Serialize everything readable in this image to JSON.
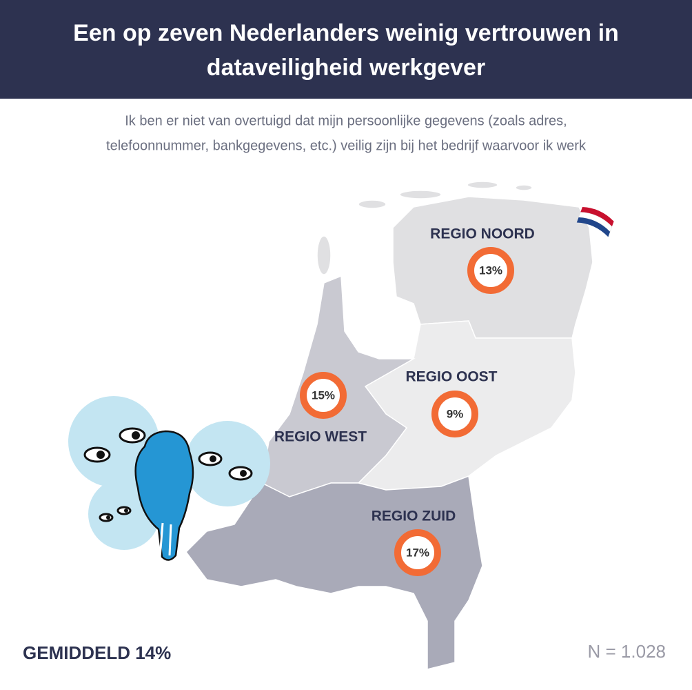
{
  "header": {
    "title_lines": [
      "Een op zeven Nederlanders weinig vertrouwen in",
      "dataveiligheid werkgever"
    ]
  },
  "subtitle_lines": [
    "Ik ben er niet van overtuigd dat mijn persoonlijke gegevens (zoals adres,",
    "telefoonnummer, bankgegevens, etc.) veilig zijn bij het bedrijf waarvoor ik werk"
  ],
  "regions": [
    {
      "name": "REGIO NOORD",
      "value": "13%"
    },
    {
      "name": "REGIO OOST",
      "value": "9%"
    },
    {
      "name": "REGIO WEST",
      "value": "15%"
    },
    {
      "name": "REGIO ZUID",
      "value": "17%"
    }
  ],
  "footer": {
    "average": "GEMIDDELD 14%",
    "sample": "N = 1.028"
  }
}
